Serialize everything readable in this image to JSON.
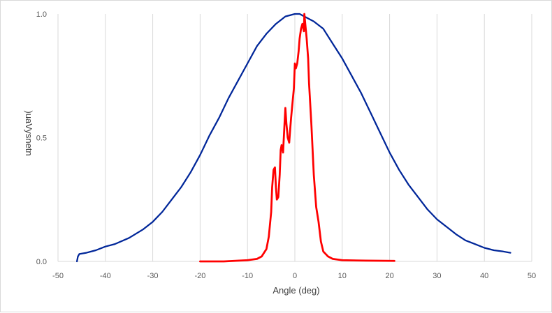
{
  "chart_data": {
    "type": "line",
    "title": "",
    "xlabel": "Angle (deg)",
    "ylabel": ")uaVysnetn",
    "xlim": [
      -50,
      50
    ],
    "ylim": [
      0,
      1
    ],
    "x_ticks": [
      "-50",
      "-40",
      "-30",
      "-20",
      "-10",
      "0",
      "10",
      "20",
      "30",
      "40",
      "50"
    ],
    "y_ticks": [
      "0.0",
      "0.5",
      "1.0"
    ],
    "grid": "vertical",
    "legend": "none",
    "series": [
      {
        "color": "#002699",
        "x": [
          -46,
          -45.8,
          -45.5,
          -44,
          -42,
          -40,
          -38,
          -35,
          -32,
          -30,
          -28,
          -26,
          -24,
          -22,
          -20,
          -18,
          -16,
          -14,
          -12,
          -10,
          -8,
          -6,
          -4,
          -2,
          0,
          1,
          2,
          4,
          6,
          8,
          10,
          12,
          14,
          16,
          18,
          20,
          22,
          24,
          26,
          28,
          30,
          32,
          34,
          36,
          38,
          40,
          42,
          44,
          45.5
        ],
        "y": [
          0.0,
          0.02,
          0.03,
          0.035,
          0.045,
          0.06,
          0.07,
          0.095,
          0.13,
          0.16,
          0.2,
          0.25,
          0.3,
          0.36,
          0.43,
          0.51,
          0.58,
          0.66,
          0.73,
          0.8,
          0.87,
          0.92,
          0.96,
          0.99,
          1.0,
          1.0,
          0.99,
          0.97,
          0.94,
          0.88,
          0.82,
          0.75,
          0.68,
          0.6,
          0.52,
          0.44,
          0.37,
          0.31,
          0.26,
          0.21,
          0.17,
          0.14,
          0.11,
          0.085,
          0.07,
          0.055,
          0.045,
          0.04,
          0.035
        ]
      },
      {
        "color": "#ff0000",
        "x": [
          -20,
          -15,
          -10,
          -8,
          -7,
          -6,
          -5.5,
          -5,
          -4.8,
          -4.5,
          -4.2,
          -4,
          -3.8,
          -3.5,
          -3.2,
          -3,
          -2.8,
          -2.5,
          -2.2,
          -2,
          -1.8,
          -1.5,
          -1.2,
          -1,
          -0.8,
          -0.5,
          -0.2,
          0,
          0.2,
          0.5,
          0.8,
          1,
          1.3,
          1.6,
          1.9,
          2,
          2.2,
          2.5,
          2.8,
          3,
          3.5,
          4,
          4.5,
          5,
          5.5,
          6,
          7,
          8,
          10,
          15,
          21
        ],
        "y": [
          0.0,
          0.0,
          0.005,
          0.01,
          0.02,
          0.05,
          0.1,
          0.2,
          0.3,
          0.37,
          0.38,
          0.3,
          0.25,
          0.26,
          0.35,
          0.45,
          0.47,
          0.44,
          0.55,
          0.62,
          0.56,
          0.5,
          0.48,
          0.53,
          0.58,
          0.64,
          0.7,
          0.8,
          0.78,
          0.8,
          0.85,
          0.9,
          0.94,
          0.96,
          0.93,
          1.0,
          0.96,
          0.9,
          0.82,
          0.72,
          0.55,
          0.35,
          0.22,
          0.16,
          0.08,
          0.04,
          0.02,
          0.01,
          0.005,
          0.003,
          0.002
        ]
      }
    ]
  }
}
